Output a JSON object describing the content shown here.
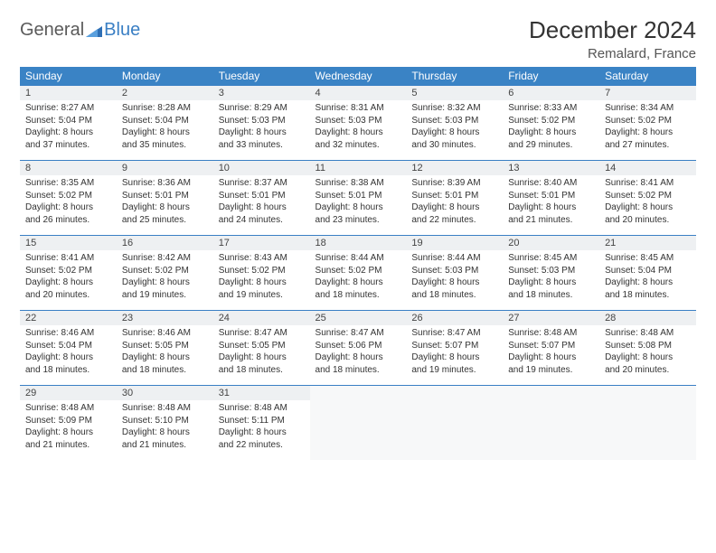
{
  "logo": {
    "text_general": "General",
    "text_blue": "Blue"
  },
  "title": "December 2024",
  "location": "Remalard, France",
  "colors": {
    "header_bg": "#3a83c5",
    "header_text": "#ffffff",
    "accent_line": "#3a7fc4",
    "daynum_bg": "#eef0f2",
    "body_text": "#333333",
    "logo_gray": "#5a5a5a",
    "logo_blue": "#3a7fc4"
  },
  "day_headers": [
    "Sunday",
    "Monday",
    "Tuesday",
    "Wednesday",
    "Thursday",
    "Friday",
    "Saturday"
  ],
  "weeks": [
    [
      {
        "n": "1",
        "sr": "Sunrise: 8:27 AM",
        "ss": "Sunset: 5:04 PM",
        "d1": "Daylight: 8 hours",
        "d2": "and 37 minutes."
      },
      {
        "n": "2",
        "sr": "Sunrise: 8:28 AM",
        "ss": "Sunset: 5:04 PM",
        "d1": "Daylight: 8 hours",
        "d2": "and 35 minutes."
      },
      {
        "n": "3",
        "sr": "Sunrise: 8:29 AM",
        "ss": "Sunset: 5:03 PM",
        "d1": "Daylight: 8 hours",
        "d2": "and 33 minutes."
      },
      {
        "n": "4",
        "sr": "Sunrise: 8:31 AM",
        "ss": "Sunset: 5:03 PM",
        "d1": "Daylight: 8 hours",
        "d2": "and 32 minutes."
      },
      {
        "n": "5",
        "sr": "Sunrise: 8:32 AM",
        "ss": "Sunset: 5:03 PM",
        "d1": "Daylight: 8 hours",
        "d2": "and 30 minutes."
      },
      {
        "n": "6",
        "sr": "Sunrise: 8:33 AM",
        "ss": "Sunset: 5:02 PM",
        "d1": "Daylight: 8 hours",
        "d2": "and 29 minutes."
      },
      {
        "n": "7",
        "sr": "Sunrise: 8:34 AM",
        "ss": "Sunset: 5:02 PM",
        "d1": "Daylight: 8 hours",
        "d2": "and 27 minutes."
      }
    ],
    [
      {
        "n": "8",
        "sr": "Sunrise: 8:35 AM",
        "ss": "Sunset: 5:02 PM",
        "d1": "Daylight: 8 hours",
        "d2": "and 26 minutes."
      },
      {
        "n": "9",
        "sr": "Sunrise: 8:36 AM",
        "ss": "Sunset: 5:01 PM",
        "d1": "Daylight: 8 hours",
        "d2": "and 25 minutes."
      },
      {
        "n": "10",
        "sr": "Sunrise: 8:37 AM",
        "ss": "Sunset: 5:01 PM",
        "d1": "Daylight: 8 hours",
        "d2": "and 24 minutes."
      },
      {
        "n": "11",
        "sr": "Sunrise: 8:38 AM",
        "ss": "Sunset: 5:01 PM",
        "d1": "Daylight: 8 hours",
        "d2": "and 23 minutes."
      },
      {
        "n": "12",
        "sr": "Sunrise: 8:39 AM",
        "ss": "Sunset: 5:01 PM",
        "d1": "Daylight: 8 hours",
        "d2": "and 22 minutes."
      },
      {
        "n": "13",
        "sr": "Sunrise: 8:40 AM",
        "ss": "Sunset: 5:01 PM",
        "d1": "Daylight: 8 hours",
        "d2": "and 21 minutes."
      },
      {
        "n": "14",
        "sr": "Sunrise: 8:41 AM",
        "ss": "Sunset: 5:02 PM",
        "d1": "Daylight: 8 hours",
        "d2": "and 20 minutes."
      }
    ],
    [
      {
        "n": "15",
        "sr": "Sunrise: 8:41 AM",
        "ss": "Sunset: 5:02 PM",
        "d1": "Daylight: 8 hours",
        "d2": "and 20 minutes."
      },
      {
        "n": "16",
        "sr": "Sunrise: 8:42 AM",
        "ss": "Sunset: 5:02 PM",
        "d1": "Daylight: 8 hours",
        "d2": "and 19 minutes."
      },
      {
        "n": "17",
        "sr": "Sunrise: 8:43 AM",
        "ss": "Sunset: 5:02 PM",
        "d1": "Daylight: 8 hours",
        "d2": "and 19 minutes."
      },
      {
        "n": "18",
        "sr": "Sunrise: 8:44 AM",
        "ss": "Sunset: 5:02 PM",
        "d1": "Daylight: 8 hours",
        "d2": "and 18 minutes."
      },
      {
        "n": "19",
        "sr": "Sunrise: 8:44 AM",
        "ss": "Sunset: 5:03 PM",
        "d1": "Daylight: 8 hours",
        "d2": "and 18 minutes."
      },
      {
        "n": "20",
        "sr": "Sunrise: 8:45 AM",
        "ss": "Sunset: 5:03 PM",
        "d1": "Daylight: 8 hours",
        "d2": "and 18 minutes."
      },
      {
        "n": "21",
        "sr": "Sunrise: 8:45 AM",
        "ss": "Sunset: 5:04 PM",
        "d1": "Daylight: 8 hours",
        "d2": "and 18 minutes."
      }
    ],
    [
      {
        "n": "22",
        "sr": "Sunrise: 8:46 AM",
        "ss": "Sunset: 5:04 PM",
        "d1": "Daylight: 8 hours",
        "d2": "and 18 minutes."
      },
      {
        "n": "23",
        "sr": "Sunrise: 8:46 AM",
        "ss": "Sunset: 5:05 PM",
        "d1": "Daylight: 8 hours",
        "d2": "and 18 minutes."
      },
      {
        "n": "24",
        "sr": "Sunrise: 8:47 AM",
        "ss": "Sunset: 5:05 PM",
        "d1": "Daylight: 8 hours",
        "d2": "and 18 minutes."
      },
      {
        "n": "25",
        "sr": "Sunrise: 8:47 AM",
        "ss": "Sunset: 5:06 PM",
        "d1": "Daylight: 8 hours",
        "d2": "and 18 minutes."
      },
      {
        "n": "26",
        "sr": "Sunrise: 8:47 AM",
        "ss": "Sunset: 5:07 PM",
        "d1": "Daylight: 8 hours",
        "d2": "and 19 minutes."
      },
      {
        "n": "27",
        "sr": "Sunrise: 8:48 AM",
        "ss": "Sunset: 5:07 PM",
        "d1": "Daylight: 8 hours",
        "d2": "and 19 minutes."
      },
      {
        "n": "28",
        "sr": "Sunrise: 8:48 AM",
        "ss": "Sunset: 5:08 PM",
        "d1": "Daylight: 8 hours",
        "d2": "and 20 minutes."
      }
    ],
    [
      {
        "n": "29",
        "sr": "Sunrise: 8:48 AM",
        "ss": "Sunset: 5:09 PM",
        "d1": "Daylight: 8 hours",
        "d2": "and 21 minutes."
      },
      {
        "n": "30",
        "sr": "Sunrise: 8:48 AM",
        "ss": "Sunset: 5:10 PM",
        "d1": "Daylight: 8 hours",
        "d2": "and 21 minutes."
      },
      {
        "n": "31",
        "sr": "Sunrise: 8:48 AM",
        "ss": "Sunset: 5:11 PM",
        "d1": "Daylight: 8 hours",
        "d2": "and 22 minutes."
      },
      null,
      null,
      null,
      null
    ]
  ]
}
